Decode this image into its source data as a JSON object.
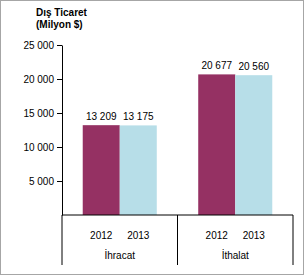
{
  "chart_data": {
    "type": "bar",
    "title": "Dış Ticaret",
    "ylabel": "(Milyon $)",
    "categories": [
      "İhracat",
      "İthalat"
    ],
    "series": [
      {
        "name": "2012",
        "color": "#953163",
        "values": [
          13209,
          20677
        ],
        "value_labels": [
          "13 209",
          "20 677"
        ]
      },
      {
        "name": "2013",
        "color": "#b7dee8",
        "values": [
          13175,
          20560
        ],
        "value_labels": [
          "13 175",
          "20 560"
        ]
      }
    ],
    "ylim": [
      0,
      25000
    ],
    "yticks": [
      {
        "value": 5000,
        "label": "5 000"
      },
      {
        "value": 10000,
        "label": "10 000"
      },
      {
        "value": 15000,
        "label": "15 000"
      },
      {
        "value": 20000,
        "label": "20 000"
      },
      {
        "value": 25000,
        "label": "25 000"
      }
    ],
    "grid": false,
    "data_labels": true
  }
}
